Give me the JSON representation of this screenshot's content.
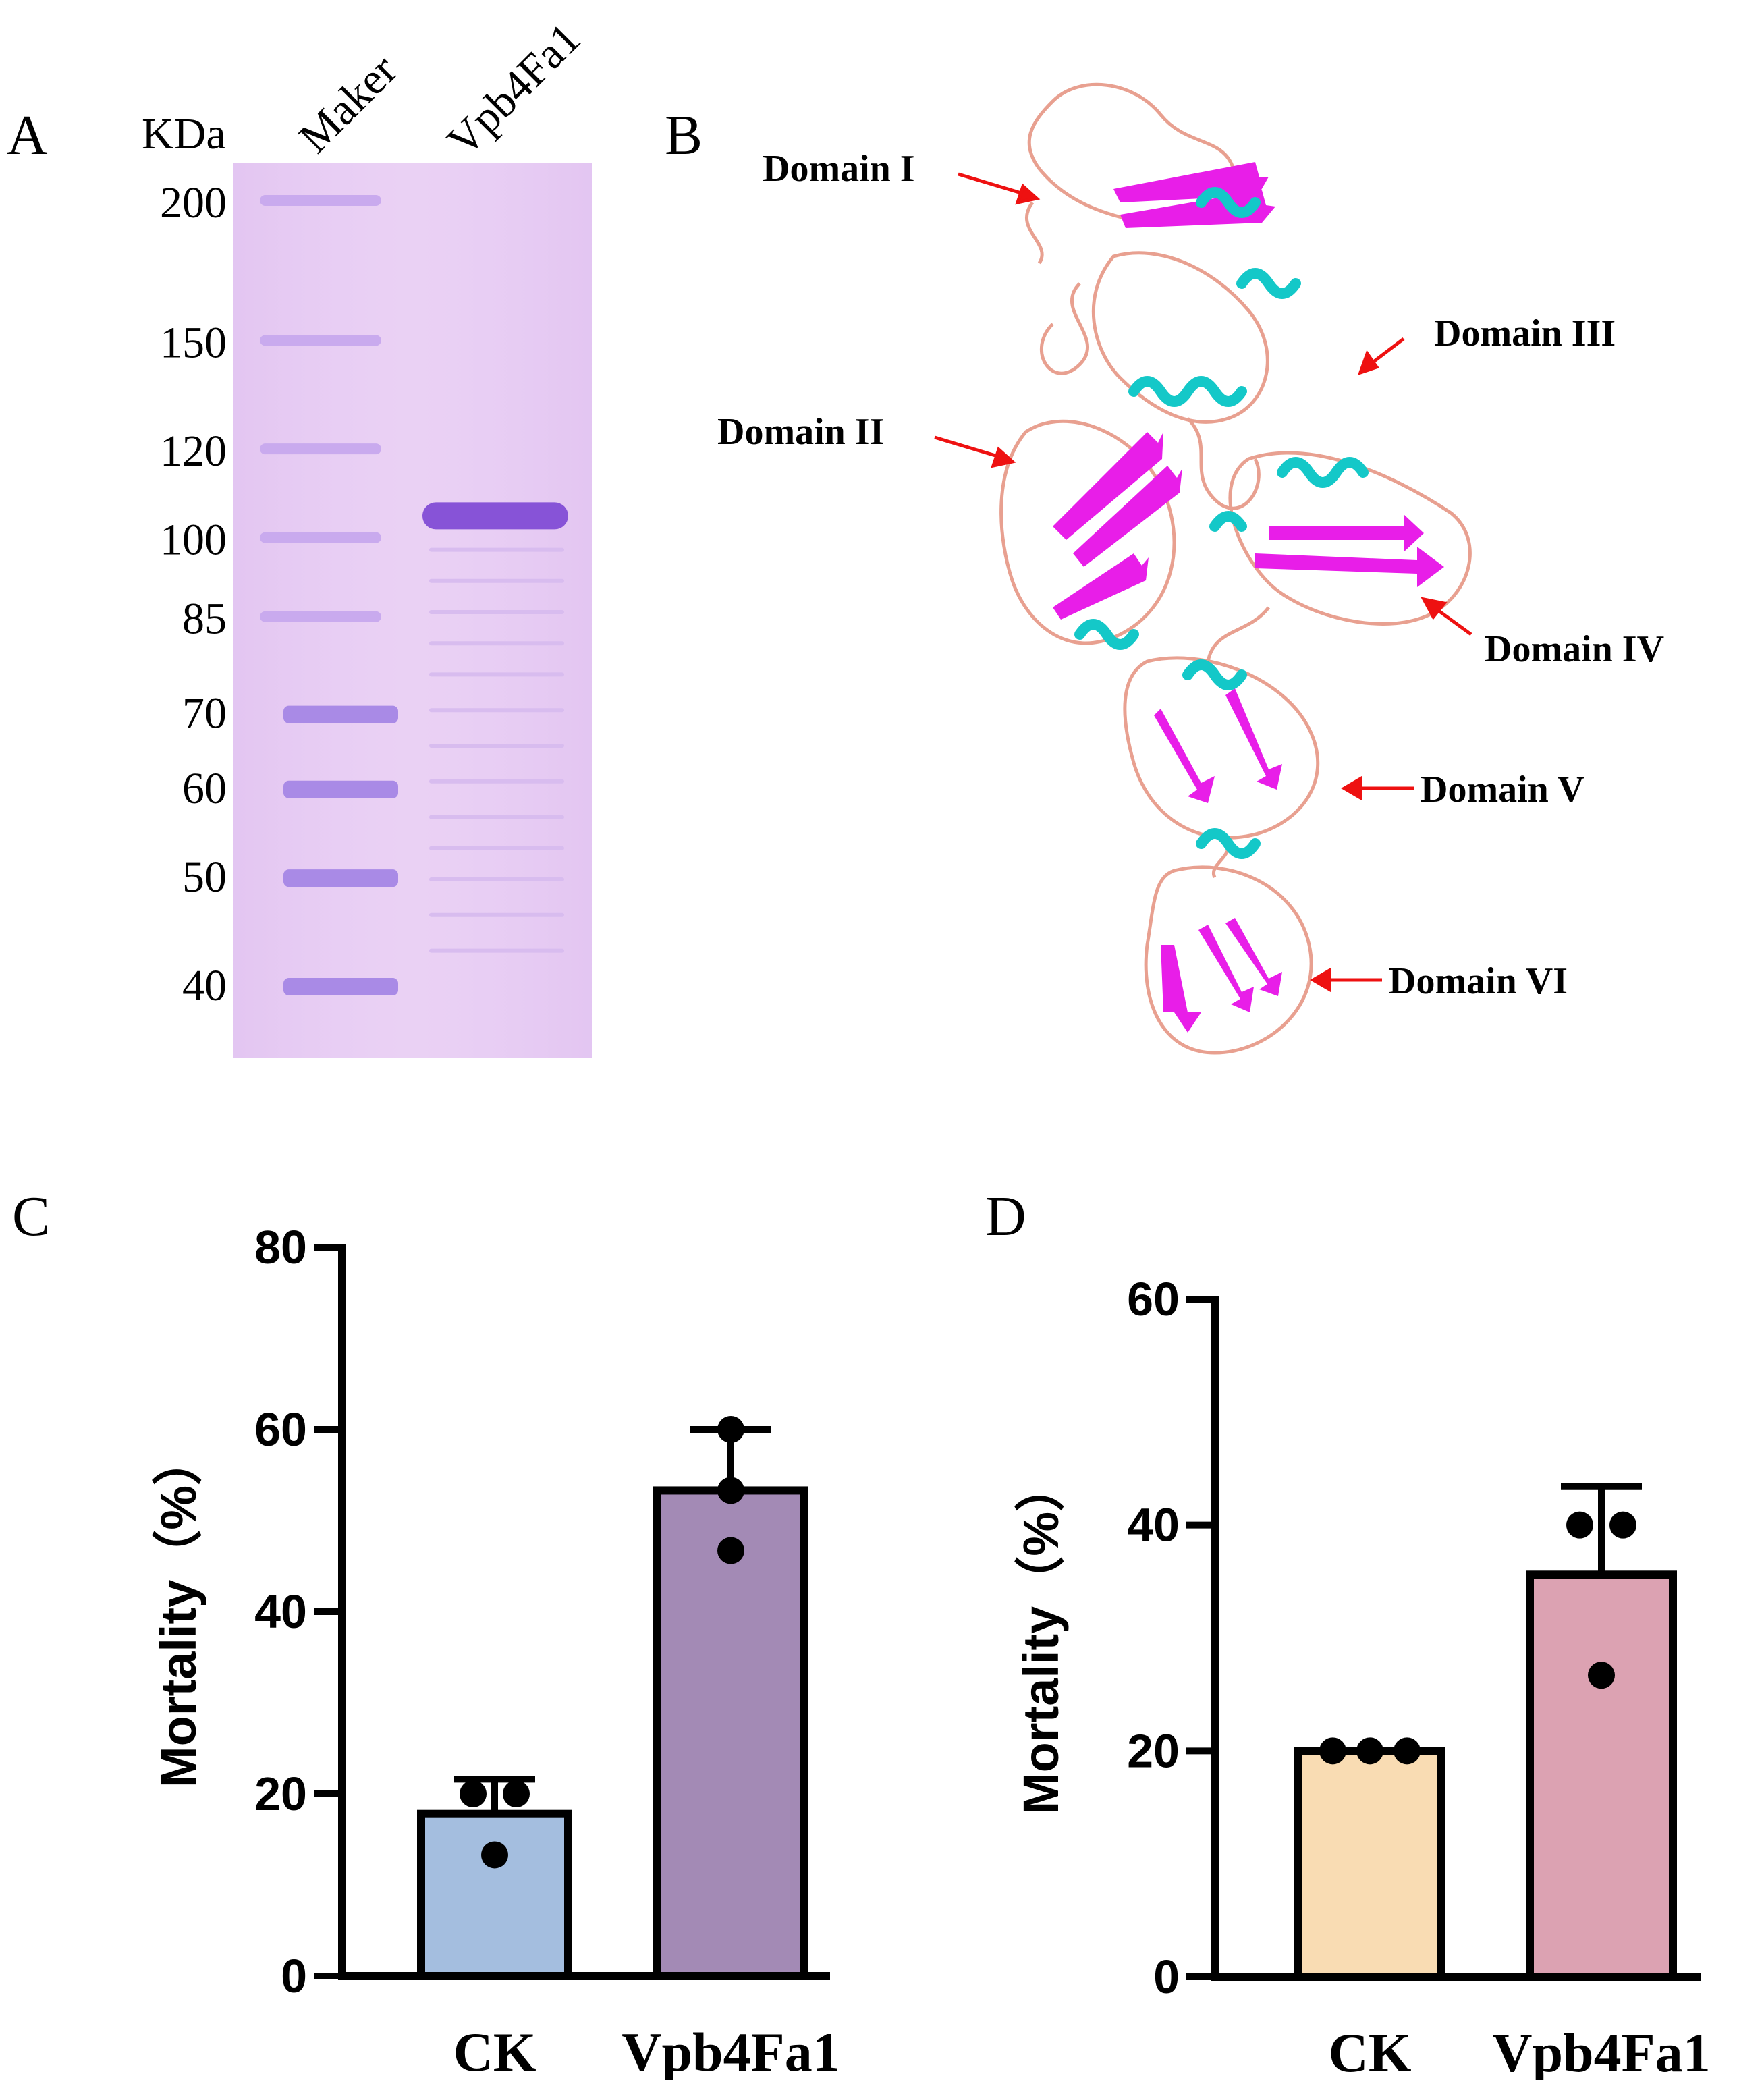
{
  "panels": {
    "a": "A",
    "b": "B",
    "c": "C",
    "d": "D"
  },
  "gel": {
    "unit_label": "KDa",
    "lane_marker_label": "Maker",
    "lane_sample_label": "Vpb4Fa1",
    "marker_sizes": [
      "200",
      "150",
      "120",
      "100",
      "85",
      "70",
      "60",
      "50",
      "40"
    ],
    "band_kda": 105,
    "colors": {
      "background": "#e6c8f2",
      "band": "#8a5ad6"
    }
  },
  "structure": {
    "domain_labels": [
      "Domain I",
      "Domain II",
      "Domain III",
      "Domain IV",
      "Domain V",
      "Domain VI"
    ],
    "colors": {
      "sheet": "#e81ee8",
      "helix": "#14c8c8",
      "loop": "#e8a090",
      "arrow": "#ee1111"
    }
  },
  "chart_data": [
    {
      "type": "bar",
      "panel": "C",
      "categories": [
        "CK",
        "Vpb4Fa1"
      ],
      "values": [
        17.8,
        53.3
      ],
      "error_upper": [
        21.6,
        60.0
      ],
      "points": [
        [
          20,
          20,
          13.3
        ],
        [
          60,
          53.3,
          46.7
        ]
      ],
      "ylabel": "Mortality（%）",
      "ylim": [
        0,
        80
      ],
      "yticks": [
        "0",
        "20",
        "40",
        "60",
        "80"
      ],
      "colors": [
        "#a4bedf",
        "#a38ab5"
      ]
    },
    {
      "type": "bar",
      "panel": "D",
      "categories": [
        "CK",
        "Vpb4Fa1"
      ],
      "values": [
        20,
        35.6
      ],
      "error_upper": [
        20.0,
        43.4
      ],
      "points": [
        [
          20,
          20,
          20
        ],
        [
          40,
          40,
          26.7
        ]
      ],
      "ylabel": "Mortality（%）",
      "ylim": [
        0,
        60
      ],
      "yticks": [
        "0",
        "20",
        "40",
        "60"
      ],
      "colors": [
        "#f9dcb3",
        "#dca2b2"
      ]
    }
  ]
}
